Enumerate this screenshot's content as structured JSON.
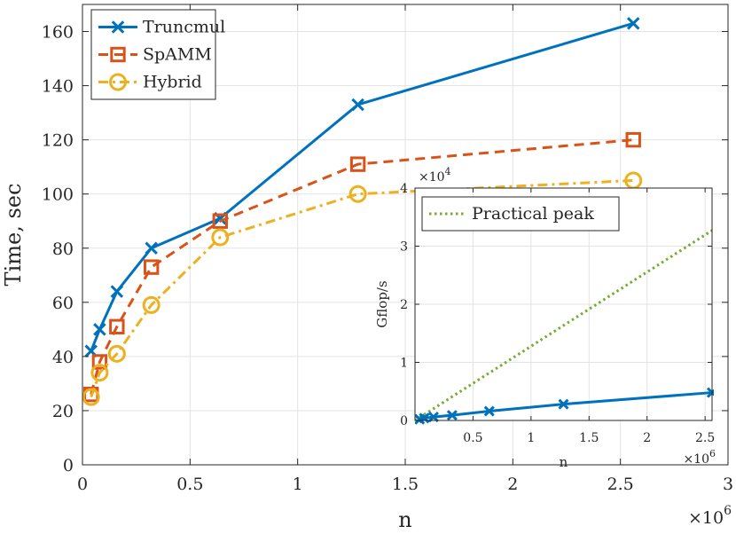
{
  "chart_data": [
    {
      "type": "line",
      "id": "main",
      "title": "",
      "xlabel": "n",
      "ylabel": "Time, sec",
      "x_exponent": "×10",
      "x_exponent_power": "6",
      "xlim": [
        0,
        3
      ],
      "ylim": [
        0,
        170
      ],
      "x_ticks": [
        0,
        0.5,
        1,
        1.5,
        2,
        2.5,
        3
      ],
      "x_tick_labels": [
        "0",
        "0.5",
        "1",
        "1.5",
        "2",
        "2.5",
        "3"
      ],
      "y_ticks": [
        0,
        20,
        40,
        60,
        80,
        100,
        120,
        140,
        160
      ],
      "y_tick_labels": [
        "0",
        "20",
        "40",
        "60",
        "80",
        "100",
        "120",
        "140",
        "160"
      ],
      "grid": true,
      "legend_position": "top-left",
      "series": [
        {
          "name": "Truncmul",
          "color": "#0072BD",
          "dash": "solid",
          "marker": "x",
          "x": [
            0.04,
            0.08,
            0.16,
            0.32,
            0.64,
            1.28,
            2.56
          ],
          "y": [
            42,
            50,
            64,
            80,
            91,
            133,
            163
          ]
        },
        {
          "name": "SpAMM",
          "color": "#D95319",
          "dash": "dashed",
          "marker": "square",
          "x": [
            0.04,
            0.08,
            0.16,
            0.32,
            0.64,
            1.28,
            2.56
          ],
          "y": [
            26,
            38,
            51,
            73,
            90,
            111,
            120
          ]
        },
        {
          "name": "Hybrid",
          "color": "#EDB120",
          "dash": "dashdot",
          "marker": "circle",
          "x": [
            0.04,
            0.08,
            0.16,
            0.32,
            0.64,
            1.28,
            2.56
          ],
          "y": [
            25,
            34,
            41,
            59,
            84,
            100,
            105
          ]
        }
      ]
    },
    {
      "type": "line",
      "id": "inset",
      "title": "",
      "xlabel": "n",
      "ylabel": "Gflop/s",
      "x_exponent": "×10",
      "x_exponent_power": "6",
      "y_exponent": "×10",
      "y_exponent_power": "4",
      "xlim": [
        0,
        2.56
      ],
      "ylim": [
        0,
        4
      ],
      "x_ticks": [
        0.5,
        1,
        1.5,
        2,
        2.5
      ],
      "x_tick_labels": [
        "0.5",
        "1",
        "1.5",
        "2",
        "2.5"
      ],
      "y_ticks": [
        0,
        1,
        2,
        3,
        4
      ],
      "y_tick_labels": [
        "0",
        "1",
        "2",
        "3",
        "4"
      ],
      "grid": true,
      "legend_position": "top-left",
      "series": [
        {
          "name": "Practical peak",
          "color": "#77AC30",
          "dash": "dotted",
          "marker": "none",
          "show_in_legend": true,
          "x": [
            0,
            2.56
          ],
          "y": [
            0,
            3.27
          ]
        },
        {
          "name": "Truncmul",
          "color": "#0072BD",
          "dash": "solid",
          "marker": "x",
          "show_in_legend": false,
          "x": [
            0.04,
            0.08,
            0.16,
            0.32,
            0.64,
            1.28,
            2.56
          ],
          "y": [
            0.02,
            0.04,
            0.06,
            0.09,
            0.16,
            0.28,
            0.48
          ]
        }
      ]
    }
  ]
}
